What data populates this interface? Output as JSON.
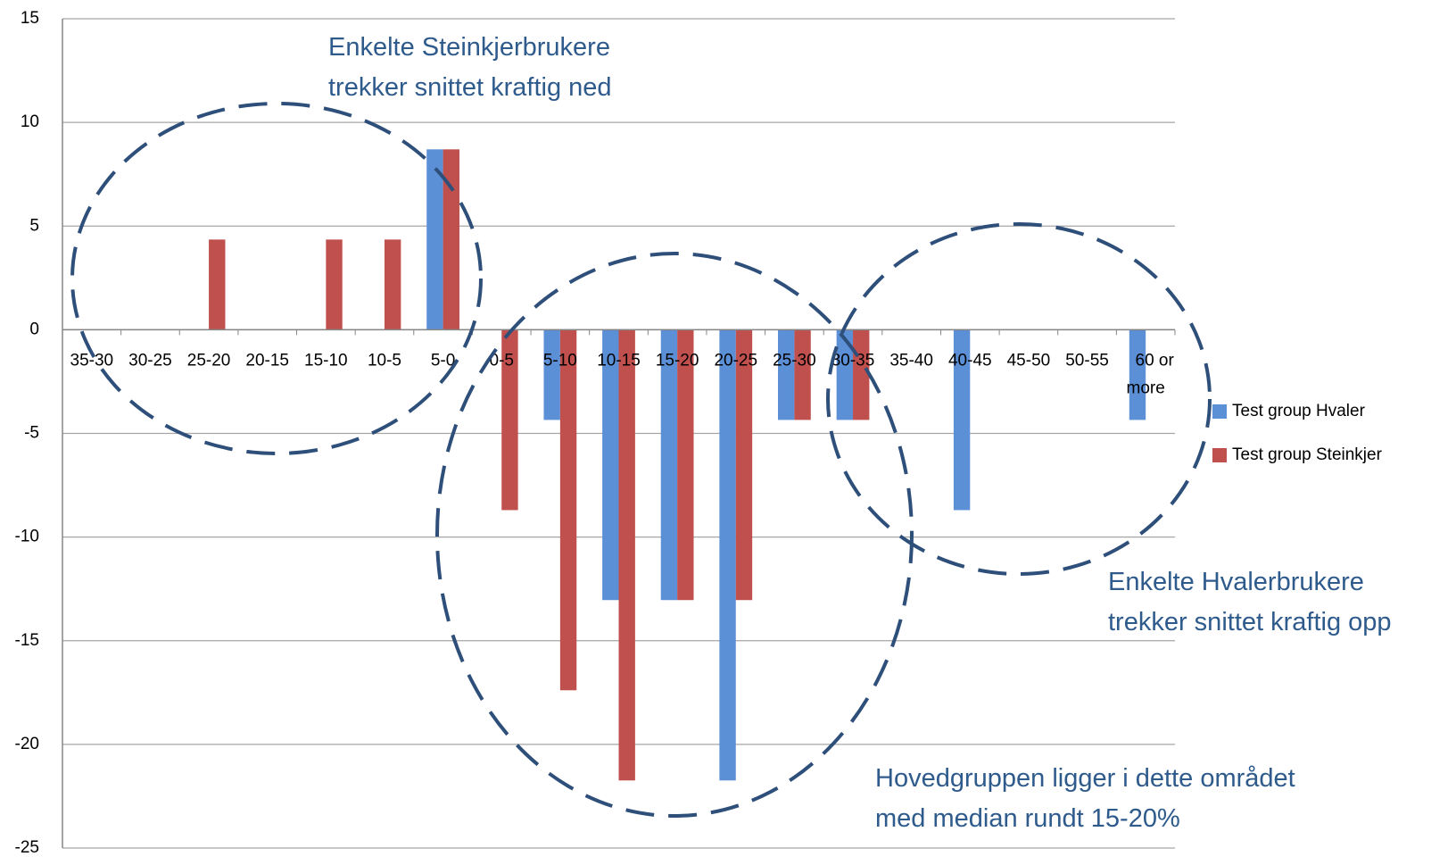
{
  "chart_data": {
    "type": "bar",
    "categories": [
      "35-30",
      "30-25",
      "25-20",
      "20-15",
      "15-10",
      "10-5",
      "5-0",
      "0-5",
      "5-10",
      "10-15",
      "15-20",
      "20-25",
      "25-30",
      "30-35",
      "35-40",
      "40-45",
      "45-50",
      "50-55",
      "60 or more"
    ],
    "series": [
      {
        "name": "Test group Hvaler",
        "color": "#5b8fd6",
        "values": [
          0,
          0,
          0,
          0,
          0,
          0,
          8.7,
          0,
          -4.35,
          -13.04,
          -13.04,
          -21.74,
          -4.35,
          -4.35,
          0,
          -8.7,
          0,
          0,
          -4.35
        ]
      },
      {
        "name": "Test group Steinkjer",
        "color": "#c0504d",
        "values": [
          0,
          0,
          4.35,
          0,
          4.35,
          4.35,
          8.7,
          -8.7,
          -17.39,
          -21.74,
          -13.04,
          -13.04,
          -4.35,
          -4.35,
          0,
          0,
          0,
          0,
          0
        ]
      }
    ],
    "ylim": [
      -25,
      15
    ],
    "yticks": [
      -25,
      -20,
      -15,
      -10,
      -5,
      0,
      5,
      10,
      15
    ],
    "grid": true,
    "legend": "right",
    "annotations": [
      [
        "Enkelte Steinkjerbrukere",
        "trekker snittet kraftig ned"
      ],
      [
        "Enkelte Hvalerbrukere",
        "trekker snittet kraftig opp"
      ],
      [
        "Hovedgruppen ligger i dette området",
        "med median rundt 15-20%"
      ]
    ]
  }
}
